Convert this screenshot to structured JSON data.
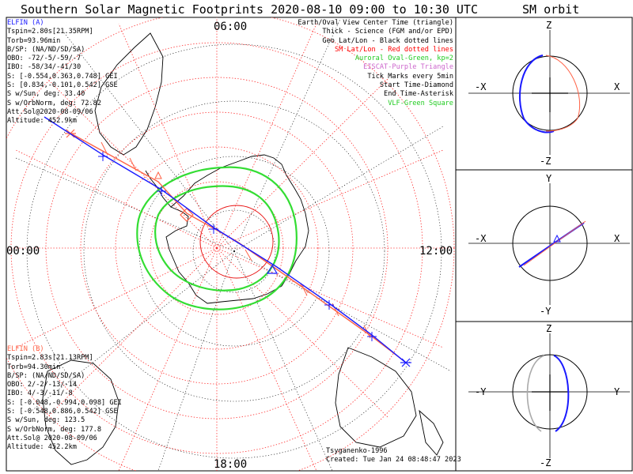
{
  "title": "Southern Solar Magnetic Footprints 2020-08-10 09:00 to 10:30 UTC",
  "orbit_title": "SM orbit",
  "elfin_a": {
    "color": "#1a1aff",
    "lines": [
      "ELFIN (A)",
      "Tspin=2.80s[21.35RPM]",
      "Torb=93.96min",
      "B/SP: (NA/ND/SD/SA)",
      "OBO: -72/-5/-59/-7",
      "IBO: -58/34/-41/30",
      "S: [-0.554,0.363,0.748] GEI",
      "S: [0.834,-0.101,0.542] GSE",
      "S w/Sun, deg: 33.40",
      "S w/OrbNorm, deg: 72.82",
      "Att.Sol@2020-08-09/06",
      "Altitude: 452.9km"
    ]
  },
  "elfin_b": {
    "color": "#ff6347",
    "lines": [
      "ELFIN (B)",
      "Tspin=2.83s[21.13RPM]",
      "Torb=94.30min",
      "B/SP: (NA/ND/SD/SA)",
      "OBO: 2/-2/-13/-14",
      "IBO: 4/-3/-11/-8",
      "S: [-0.048,-0.994,0.098] GEI",
      "S: [-0.548,0.886,0.542] GSE",
      "S w/Sun, deg: 123.5",
      "S w/OrbNorm, deg: 177.8",
      "Att.Sol@ 2020-08-09/06",
      "Altitude: 452.2km"
    ]
  },
  "legend": [
    {
      "text": "Earth/Oval View Center Time (triangle)",
      "color": "#000000"
    },
    {
      "text": "Thick - Science (FGM and/or EPD)",
      "color": "#000000"
    },
    {
      "text": "Geo Lat/Lon - Black dotted lines",
      "color": "#000000"
    },
    {
      "text": "SM Lat/Lon - Red dotted lines",
      "color": "#ff0000"
    },
    {
      "text": "Auroral Oval-Green, kp=2",
      "color": "#22cc22"
    },
    {
      "text": "EISCAT-Purple Triangle",
      "color": "#cc66cc"
    },
    {
      "text": "Tick Marks every 5min",
      "color": "#000000"
    },
    {
      "text": "Start Time-Diamond",
      "color": "#000000"
    },
    {
      "text": "End Time-Asterisk",
      "color": "#000000"
    },
    {
      "text": "VLF-Green Square",
      "color": "#22cc22"
    }
  ],
  "mlt_labels": {
    "top": "06:00",
    "left": "00:00",
    "right": "12:00",
    "bottom": "18:00"
  },
  "credits": [
    "Tsyganenko-1996",
    "Created: Tue Jan 24 08:48:47 2023"
  ],
  "orbit_panels": [
    {
      "v_top": "Z",
      "v_bottom": "-Z",
      "h_left": "-X",
      "h_right": "X"
    },
    {
      "v_top": "Y",
      "v_bottom": "-Y",
      "h_left": "-X",
      "h_right": "X"
    },
    {
      "v_top": "Z",
      "v_bottom": "-Z",
      "h_left": "-Y",
      "h_right": "Y"
    }
  ],
  "chart_data": {
    "type": "polar footprint map",
    "projection": "southern hemisphere, SM magnetic local time",
    "grid": true,
    "series": [
      {
        "name": "ELFIN (A)",
        "color": "#1a1aff",
        "tick_interval_min": 5
      },
      {
        "name": "ELFIN (B)",
        "color": "#ff6347",
        "tick_interval_min": 5
      }
    ],
    "auroral_oval": {
      "kp": 2,
      "color": "#22cc22"
    }
  }
}
